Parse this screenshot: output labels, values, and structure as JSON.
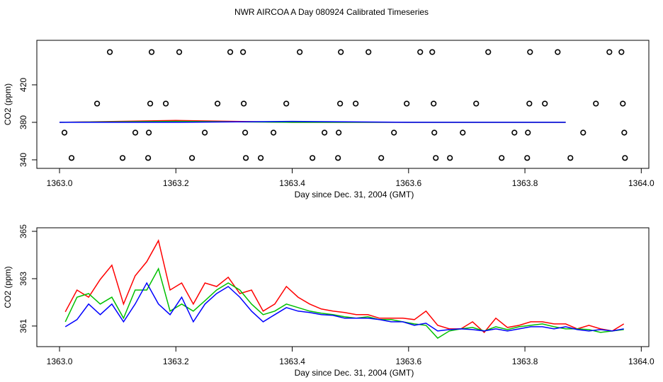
{
  "chart_data": [
    {
      "type": "line",
      "title": "NWR AIRCOA A  Day 080924  Calibrated Timeseries",
      "xlabel": "Day since Dec. 31, 2004 (GMT)",
      "ylabel": "CO2 (ppm)",
      "xlim": [
        1362.961,
        1364.013
      ],
      "ylim": [
        330.9,
        467.5
      ],
      "xticks": [
        {
          "value": 1363,
          "label": "1363.0"
        },
        1363.2,
        1363.4,
        1363.6,
        1363.8,
        {
          "value": 1364,
          "label": "1364.0"
        }
      ],
      "yticks": [
        340,
        380,
        420
      ],
      "x": [
        1363.0,
        1363.2,
        1363.4,
        1363.6,
        1363.87
      ],
      "series": [
        {
          "color": "#ff0000",
          "values": [
            380,
            382,
            380,
            380,
            380
          ]
        },
        {
          "color": "#00c000",
          "values": [
            380,
            381,
            380,
            380,
            380
          ]
        },
        {
          "color": "#0000ff",
          "values": [
            380,
            380,
            381,
            380,
            380
          ]
        }
      ],
      "points": {
        "color": "#000000",
        "x": [
          1363.0865,
          1363.1583,
          1363.2058,
          1363.2935,
          1363.3155,
          1363.4129,
          1363.4836,
          1363.5311,
          1363.62,
          1363.6407,
          1363.7369,
          1363.8088,
          1363.8563,
          1363.9452,
          1363.9659,
          1363.0646,
          1363.1559,
          1363.1827,
          1363.2716,
          1363.3167,
          1363.3898,
          1363.4823,
          1363.5091,
          1363.5968,
          1363.6431,
          1363.7162,
          1363.8076,
          1363.8343,
          1363.922,
          1363.9683,
          1363.0085,
          1363.1303,
          1363.1535,
          1363.2497,
          1363.3191,
          1363.3678,
          1363.4555,
          1363.4799,
          1363.5749,
          1363.6443,
          1363.6931,
          1363.782,
          1363.8051,
          1363.9001,
          1363.9708,
          1363.0207,
          1363.1084,
          1363.1523,
          1363.2278,
          1363.3203,
          1363.3459,
          1363.4348,
          1363.4787,
          1363.553,
          1363.6468,
          1363.6711,
          1363.76,
          1363.8039,
          1363.8782,
          1363.972
        ],
        "y": [
          455,
          455,
          455,
          455,
          455,
          455,
          455,
          455,
          455,
          455,
          455,
          455,
          455,
          455,
          455,
          400,
          400,
          400,
          400,
          400,
          400,
          400,
          400,
          400,
          400,
          400,
          400,
          400,
          400,
          400,
          369,
          369,
          369,
          369,
          369,
          369,
          369,
          369,
          369,
          369,
          369,
          369,
          369,
          369,
          369,
          342,
          342,
          342,
          342,
          342,
          342,
          342,
          342,
          342,
          342,
          342,
          342,
          342,
          342,
          342
        ]
      }
    },
    {
      "type": "line",
      "xlabel": "Day since Dec. 31, 2004 (GMT)",
      "ylabel": "CO2 (ppm)",
      "xlim": [
        1362.961,
        1364.013
      ],
      "ylim": [
        360.13,
        365.15
      ],
      "xticks": [
        {
          "value": 1363,
          "label": "1363.0"
        },
        1363.2,
        1363.4,
        1363.6,
        1363.8,
        {
          "value": 1364,
          "label": "1364.0"
        }
      ],
      "yticks": [
        361,
        363,
        365
      ],
      "x": [
        1363.01,
        1363.03,
        1363.05,
        1363.07,
        1363.09,
        1363.11,
        1363.13,
        1363.15,
        1363.17,
        1363.19,
        1363.21,
        1363.23,
        1363.25,
        1363.27,
        1363.29,
        1363.31,
        1363.33,
        1363.35,
        1363.37,
        1363.39,
        1363.41,
        1363.43,
        1363.45,
        1363.47,
        1363.49,
        1363.51,
        1363.53,
        1363.55,
        1363.57,
        1363.59,
        1363.61,
        1363.63,
        1363.65,
        1363.67,
        1363.69,
        1363.71,
        1363.73,
        1363.75,
        1363.77,
        1363.79,
        1363.81,
        1363.83,
        1363.85,
        1363.87,
        1363.89,
        1363.91,
        1363.93,
        1363.95,
        1363.97
      ],
      "series": [
        {
          "color": "#ff0000",
          "values": [
            361.6,
            362.52,
            362.22,
            362.97,
            363.57,
            361.93,
            363.12,
            363.72,
            364.61,
            362.52,
            362.82,
            361.93,
            362.82,
            362.67,
            363.06,
            362.37,
            362.52,
            361.63,
            361.93,
            362.67,
            362.22,
            361.93,
            361.72,
            361.63,
            361.57,
            361.48,
            361.48,
            361.33,
            361.33,
            361.33,
            361.27,
            361.63,
            361.03,
            360.88,
            360.88,
            361.18,
            360.73,
            361.33,
            360.94,
            361.03,
            361.18,
            361.18,
            361.09,
            361.09,
            360.88,
            361.03,
            360.88,
            360.79,
            361.09
          ]
        },
        {
          "color": "#00c000",
          "values": [
            361.18,
            362.22,
            362.37,
            361.93,
            362.22,
            361.33,
            362.52,
            362.52,
            363.42,
            361.63,
            361.93,
            361.63,
            362.07,
            362.52,
            362.82,
            362.52,
            361.93,
            361.48,
            361.63,
            361.93,
            361.78,
            361.63,
            361.54,
            361.48,
            361.39,
            361.33,
            361.39,
            361.27,
            361.27,
            361.18,
            361.09,
            361.03,
            360.49,
            360.79,
            360.88,
            360.94,
            360.79,
            360.97,
            360.85,
            360.97,
            361.03,
            361.09,
            360.97,
            360.88,
            360.88,
            360.85,
            360.73,
            360.79,
            360.85
          ]
        },
        {
          "color": "#0000ff",
          "values": [
            360.97,
            361.27,
            361.93,
            361.48,
            361.93,
            361.18,
            361.93,
            362.82,
            361.93,
            361.48,
            362.22,
            361.18,
            361.93,
            362.37,
            362.67,
            362.22,
            361.63,
            361.18,
            361.48,
            361.78,
            361.63,
            361.57,
            361.48,
            361.45,
            361.33,
            361.33,
            361.33,
            361.27,
            361.18,
            361.18,
            361.03,
            361.12,
            360.79,
            360.85,
            360.88,
            360.85,
            360.79,
            360.88,
            360.79,
            360.88,
            360.97,
            360.97,
            360.88,
            360.97,
            360.85,
            360.79,
            360.85,
            360.79,
            360.88
          ]
        }
      ]
    }
  ]
}
